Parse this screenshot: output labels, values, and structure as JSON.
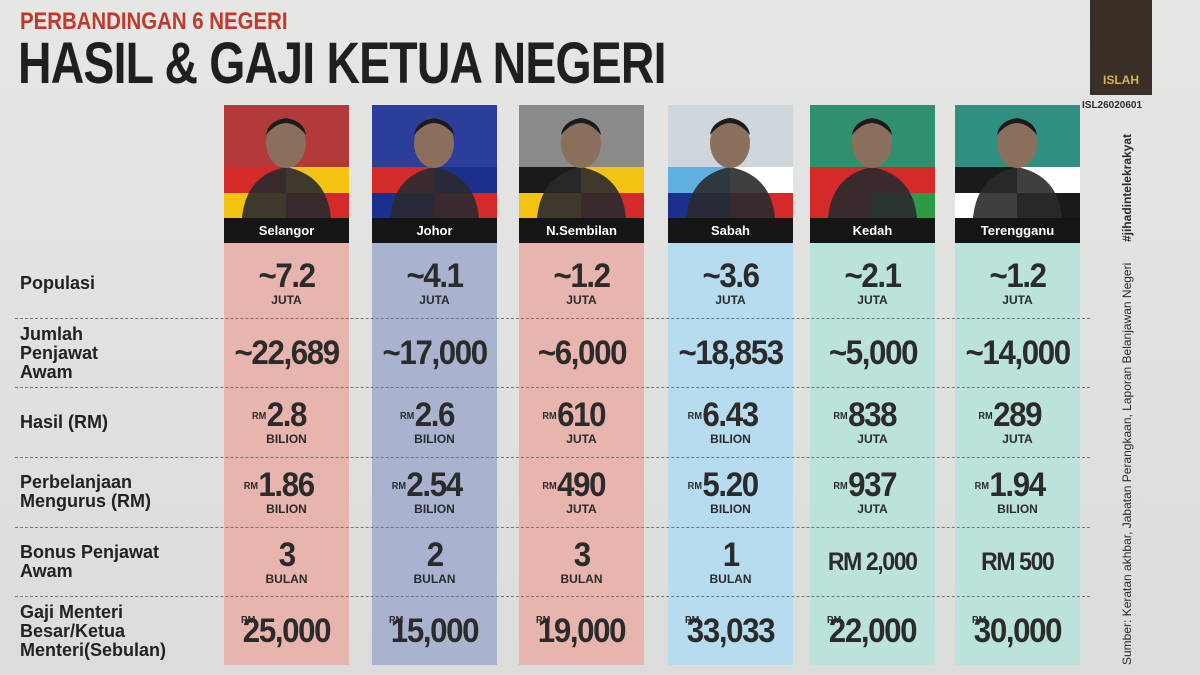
{
  "header": {
    "subtitle": "PERBANDINGAN 6 NEGERI",
    "title": "HASIL & GAJI KETUA NEGERI",
    "logo": "ISLAH",
    "code": "ISL26020601"
  },
  "table": {
    "columns": [
      "Selangor",
      "Johor",
      "N.Sembilan",
      "Sabah",
      "Kedah",
      "Terengganu"
    ],
    "row_labels": [
      [
        "Populasi"
      ],
      [
        "Jumlah",
        "Penjawat",
        "Awam"
      ],
      [
        "Hasil (RM)"
      ],
      [
        "Perbelanjaan",
        "Mengurus (RM)"
      ],
      [
        "Bonus Penjawat",
        "Awam"
      ],
      [
        "Gaji Menteri",
        "Besar/Ketua",
        "Menteri(Sebulan)"
      ]
    ],
    "rows": [
      [
        {
          "value": "~7.2",
          "unit": "JUTA"
        },
        {
          "value": "~4.1",
          "unit": "JUTA"
        },
        {
          "value": "~1.2",
          "unit": "JUTA"
        },
        {
          "value": "~3.6",
          "unit": "JUTA"
        },
        {
          "value": "~2.1",
          "unit": "JUTA"
        },
        {
          "value": "~1.2",
          "unit": "JUTA"
        }
      ],
      [
        {
          "value": "~22,689"
        },
        {
          "value": "~17,000"
        },
        {
          "value": "~6,000"
        },
        {
          "value": "~18,853"
        },
        {
          "value": "~5,000"
        },
        {
          "value": "~14,000"
        }
      ],
      [
        {
          "prefix": "RM",
          "value": "2.8",
          "unit": "BILION"
        },
        {
          "prefix": "RM",
          "value": "2.6",
          "unit": "BILION"
        },
        {
          "prefix": "RM",
          "value": "610",
          "unit": "JUTA"
        },
        {
          "prefix": "RM",
          "value": "6.43",
          "unit": "BILION"
        },
        {
          "prefix": "RM",
          "value": "838",
          "unit": "JUTA"
        },
        {
          "prefix": "RM",
          "value": "289",
          "unit": "JUTA"
        }
      ],
      [
        {
          "prefix": "RM",
          "value": "1.86",
          "unit": "BILION"
        },
        {
          "prefix": "RM",
          "value": "2.54",
          "unit": "BILION"
        },
        {
          "prefix": "RM",
          "value": "490",
          "unit": "JUTA"
        },
        {
          "prefix": "RM",
          "value": "5.20",
          "unit": "BILION"
        },
        {
          "prefix": "RM",
          "value": "937",
          "unit": "JUTA"
        },
        {
          "prefix": "RM",
          "value": "1.94",
          "unit": "BILION"
        }
      ],
      [
        {
          "value": "3",
          "unit": "BULAN"
        },
        {
          "value": "2",
          "unit": "BULAN"
        },
        {
          "value": "3",
          "unit": "BULAN"
        },
        {
          "value": "1",
          "unit": "BULAN"
        },
        {
          "value": "RM 2,000"
        },
        {
          "value": "RM 500"
        }
      ],
      [
        {
          "prefix": "RM",
          "value": "25,000"
        },
        {
          "prefix": "RM",
          "value": "15,000"
        },
        {
          "prefix": "RM",
          "value": "19,000"
        },
        {
          "prefix": "RM",
          "value": "33,033"
        },
        {
          "prefix": "RM",
          "value": "22,000"
        },
        {
          "prefix": "RM",
          "value": "30,000"
        }
      ]
    ]
  },
  "sidebar": {
    "source": "Sumber: Keratan akhbar, Jabatan Perangkaan, Laporan Belanjawan Negeri",
    "hashtag": "#jihadintelekrakyat"
  }
}
